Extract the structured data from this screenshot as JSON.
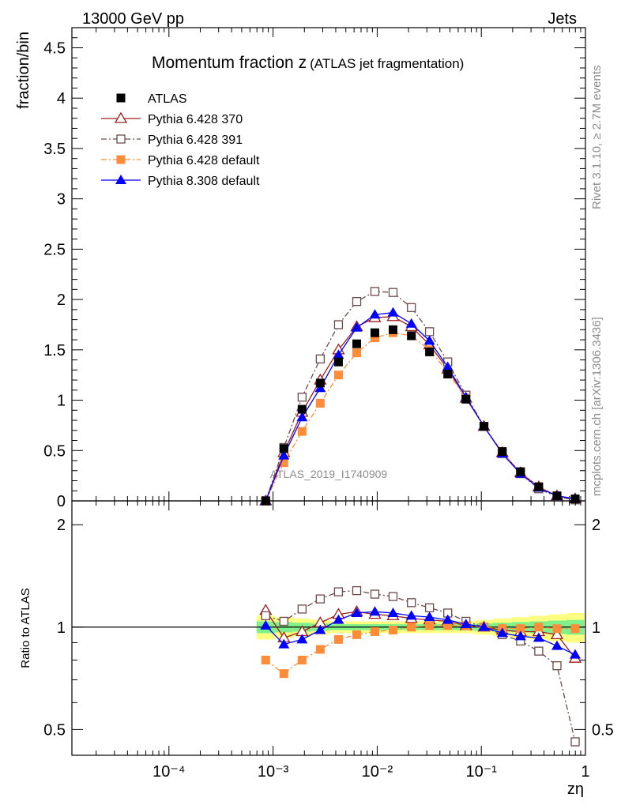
{
  "header": {
    "left": "13000 GeV pp",
    "right": "Jets"
  },
  "side": {
    "rivet": "Rivet 3.1.10, ≥ 2.7M events",
    "mcplots": "mcplots.cern.ch [arXiv:1306.3436]"
  },
  "chart_data": [
    {
      "type": "line",
      "title": "Momentum fraction z",
      "subtitle": "(ATLAS jet fragmentation)",
      "watermark": "ATLAS_2019_I1740909",
      "ylabel": "fraction/bin",
      "xscale": "log",
      "xlim": [
        1.17e-05,
        1
      ],
      "ylim": [
        0,
        4.7
      ],
      "yticks": [
        "0",
        "0.5",
        "1",
        "1.5",
        "2",
        "2.5",
        "3",
        "3.5",
        "4",
        "4.5"
      ],
      "legend_position": "top-left",
      "x": [
        0.00085,
        0.00127,
        0.0019,
        0.00284,
        0.00425,
        0.00636,
        0.0095,
        0.0142,
        0.0213,
        0.0318,
        0.0476,
        0.0712,
        0.106,
        0.159,
        0.238,
        0.356,
        0.533,
        0.797
      ],
      "series": [
        {
          "name": "ATLAS",
          "color": "#000000",
          "marker": "filled-square",
          "line": "none",
          "values": [
            0.0,
            0.52,
            0.91,
            1.17,
            1.38,
            1.56,
            1.67,
            1.7,
            1.64,
            1.48,
            1.26,
            1.01,
            0.74,
            0.49,
            0.29,
            0.14,
            0.05,
            0.02
          ]
        },
        {
          "name": "Pythia 6.428 370",
          "color": "#a01c1c",
          "marker": "open-triangle",
          "line": "solid",
          "values": [
            0.0,
            0.48,
            0.88,
            1.2,
            1.5,
            1.73,
            1.82,
            1.83,
            1.73,
            1.55,
            1.31,
            1.02,
            0.74,
            0.48,
            0.28,
            0.14,
            0.05,
            0.02
          ]
        },
        {
          "name": "Pythia 6.428 391",
          "color": "#6e4a4a",
          "marker": "open-square",
          "line": "dash-dot",
          "values": [
            0.0,
            0.53,
            1.03,
            1.41,
            1.75,
            1.98,
            2.08,
            2.07,
            1.92,
            1.68,
            1.38,
            1.05,
            0.74,
            0.47,
            0.27,
            0.12,
            0.04,
            0.01
          ]
        },
        {
          "name": "Pythia 6.428 default",
          "color": "#ff8c38",
          "marker": "filled-square",
          "line": "dash-dot",
          "values": [
            0.0,
            0.38,
            0.69,
            0.97,
            1.25,
            1.47,
            1.62,
            1.67,
            1.64,
            1.5,
            1.28,
            1.02,
            0.74,
            0.48,
            0.28,
            0.14,
            0.05,
            0.02
          ]
        },
        {
          "name": "Pythia 8.308 default",
          "color": "#0000ff",
          "marker": "filled-triangle",
          "line": "solid",
          "values": [
            0.0,
            0.45,
            0.83,
            1.12,
            1.45,
            1.72,
            1.85,
            1.87,
            1.76,
            1.59,
            1.33,
            1.03,
            0.74,
            0.47,
            0.27,
            0.13,
            0.05,
            0.02
          ]
        }
      ]
    },
    {
      "type": "line",
      "ylabel": "Ratio to ATLAS",
      "xlabel": "zη",
      "xscale": "log",
      "yscale": "log",
      "xlim": [
        1.17e-05,
        1
      ],
      "ylim": [
        0.42,
        2.35
      ],
      "yticks": [
        "0.5",
        "1",
        "2"
      ],
      "xticks": [
        "10⁻⁴",
        "10⁻³",
        "10⁻²",
        "10⁻¹",
        "1"
      ],
      "band_1sigma_halfwidth": [
        0.04,
        0.035,
        0.03,
        0.025,
        0.02,
        0.02,
        0.02,
        0.02,
        0.02,
        0.02,
        0.02,
        0.02,
        0.025,
        0.03,
        0.035,
        0.04,
        0.045,
        0.05
      ],
      "band_2sigma_halfwidth": [
        0.08,
        0.07,
        0.06,
        0.05,
        0.04,
        0.04,
        0.04,
        0.04,
        0.04,
        0.04,
        0.04,
        0.04,
        0.05,
        0.06,
        0.07,
        0.08,
        0.09,
        0.1
      ],
      "x": [
        0.00085,
        0.00127,
        0.0019,
        0.00284,
        0.00425,
        0.00636,
        0.0095,
        0.0142,
        0.0213,
        0.0318,
        0.0476,
        0.0712,
        0.106,
        0.159,
        0.238,
        0.356,
        0.533,
        0.797
      ],
      "series": [
        {
          "name": "Pythia 6.428 370",
          "values": [
            1.12,
            0.93,
            0.97,
            1.03,
            1.09,
            1.11,
            1.09,
            1.08,
            1.06,
            1.05,
            1.04,
            1.01,
            1.0,
            0.98,
            0.97,
            0.97,
            0.95,
            0.81
          ]
        },
        {
          "name": "Pythia 6.428 391",
          "values": [
            1.08,
            1.04,
            1.13,
            1.21,
            1.27,
            1.28,
            1.25,
            1.23,
            1.18,
            1.14,
            1.1,
            1.04,
            1.0,
            0.95,
            0.91,
            0.85,
            0.77,
            0.46
          ]
        },
        {
          "name": "Pythia 6.428 default",
          "values": [
            0.8,
            0.73,
            0.8,
            0.86,
            0.92,
            0.95,
            0.97,
            0.98,
            1.0,
            1.01,
            1.01,
            1.01,
            1.0,
            0.99,
            0.99,
            1.0,
            0.99,
            0.99
          ]
        },
        {
          "name": "Pythia 8.308 default",
          "values": [
            1.01,
            0.89,
            0.92,
            0.98,
            1.05,
            1.1,
            1.11,
            1.1,
            1.08,
            1.07,
            1.05,
            1.02,
            1.0,
            0.96,
            0.94,
            0.93,
            0.88,
            0.83
          ]
        }
      ]
    }
  ]
}
